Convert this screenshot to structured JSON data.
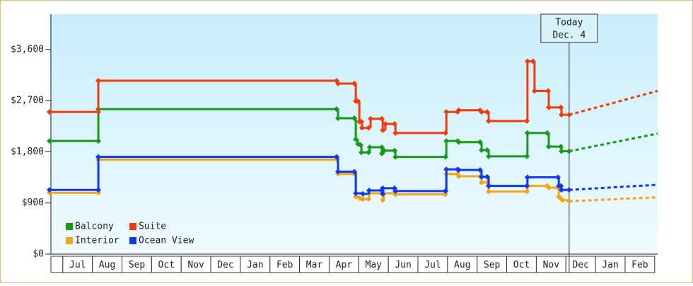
{
  "chart_data": {
    "type": "step-line",
    "xlim": [
      -0.45,
      20.1
    ],
    "ylim": [
      0,
      4220
    ],
    "xticks": [
      {
        "value": 0.5,
        "label": "Jul"
      },
      {
        "value": 1.5,
        "label": "Aug"
      },
      {
        "value": 2.5,
        "label": "Sep"
      },
      {
        "value": 3.5,
        "label": "Oct"
      },
      {
        "value": 4.5,
        "label": "Nov"
      },
      {
        "value": 5.5,
        "label": "Dec"
      },
      {
        "value": 6.5,
        "label": "Jan"
      },
      {
        "value": 7.5,
        "label": "Feb"
      },
      {
        "value": 8.5,
        "label": "Mar"
      },
      {
        "value": 9.5,
        "label": "Apr"
      },
      {
        "value": 10.5,
        "label": "May"
      },
      {
        "value": 11.5,
        "label": "Jun"
      },
      {
        "value": 12.5,
        "label": "Jul"
      },
      {
        "value": 13.5,
        "label": "Aug"
      },
      {
        "value": 14.5,
        "label": "Sep"
      },
      {
        "value": 15.5,
        "label": "Oct"
      },
      {
        "value": 16.5,
        "label": "Nov"
      },
      {
        "value": 17.5,
        "label": "Dec"
      },
      {
        "value": 18.5,
        "label": "Jan"
      },
      {
        "value": 19.5,
        "label": "Feb"
      }
    ],
    "yticks": [
      {
        "value": 0,
        "label": "$0"
      },
      {
        "value": 900,
        "label": "$900"
      },
      {
        "value": 1800,
        "label": "$1,800"
      },
      {
        "value": 2700,
        "label": "$2,700"
      },
      {
        "value": 3600,
        "label": "$3,600"
      }
    ],
    "legend": "lower left",
    "today": {
      "x": 17.11,
      "label": "Today",
      "date": "Dec. 4"
    },
    "series": [
      {
        "name": "Balcony",
        "color": "#189a18",
        "x": [
          -0.45,
          1.2,
          1.2,
          9.25,
          9.3,
          9.85,
          9.9,
          9.97,
          10.06,
          10.09,
          10.33,
          10.37,
          10.78,
          10.78,
          10.85,
          11.21,
          11.24,
          12.93,
          12.96,
          13.34,
          13.38,
          14.1,
          14.15,
          14.34,
          14.39,
          15.68,
          15.7,
          16.37,
          16.42,
          16.83,
          16.85,
          17.11
        ],
        "values": [
          1990,
          1990,
          2550,
          2550,
          2390,
          2390,
          2020,
          1940,
          1920,
          1790,
          1790,
          1880,
          1880,
          1770,
          1820,
          1820,
          1710,
          1710,
          1990,
          1990,
          1970,
          1970,
          1830,
          1830,
          1720,
          1720,
          2130,
          2130,
          1890,
          1890,
          1810,
          1810
        ],
        "forecast_x": [
          17.11,
          20.1
        ],
        "forecast_values": [
          1810,
          2120
        ]
      },
      {
        "name": "Suite",
        "color": "#f03c0c",
        "x": [
          -0.45,
          1.2,
          1.2,
          9.25,
          9.3,
          9.85,
          9.9,
          9.97,
          10.02,
          10.09,
          10.11,
          10.33,
          10.4,
          10.78,
          10.81,
          10.9,
          11.21,
          11.24,
          12.93,
          12.96,
          13.34,
          13.38,
          14.1,
          14.15,
          14.34,
          14.39,
          15.68,
          15.7,
          15.89,
          15.94,
          16.4,
          16.42,
          16.83,
          16.85,
          17.11
        ],
        "values": [
          2500,
          2500,
          3050,
          3050,
          3000,
          3000,
          2690,
          2690,
          2330,
          2330,
          2220,
          2220,
          2380,
          2380,
          2180,
          2290,
          2290,
          2130,
          2130,
          2500,
          2500,
          2530,
          2530,
          2500,
          2500,
          2340,
          2340,
          3390,
          3390,
          2870,
          2870,
          2580,
          2580,
          2450,
          2450
        ],
        "forecast_x": [
          17.11,
          20.1
        ],
        "forecast_values": [
          2450,
          2870
        ]
      },
      {
        "name": "Interior",
        "color": "#f5a418",
        "x": [
          -0.45,
          1.2,
          1.2,
          9.25,
          9.3,
          9.85,
          9.9,
          10.04,
          10.14,
          10.33,
          10.35,
          10.78,
          10.81,
          10.85,
          11.21,
          11.24,
          12.93,
          12.96,
          13.34,
          13.38,
          14.1,
          14.15,
          14.34,
          14.39,
          15.68,
          15.7,
          16.37,
          16.42,
          16.73,
          16.76,
          16.83,
          16.88,
          17.11
        ],
        "values": [
          1080,
          1080,
          1660,
          1660,
          1410,
          1410,
          1010,
          980,
          970,
          970,
          1070,
          1070,
          950,
          1070,
          1070,
          1050,
          1050,
          1410,
          1410,
          1370,
          1370,
          1260,
          1260,
          1100,
          1100,
          1200,
          1200,
          1170,
          1170,
          1010,
          980,
          950,
          930
        ],
        "forecast_x": [
          17.11,
          20.1
        ],
        "forecast_values": [
          930,
          1000
        ]
      },
      {
        "name": "Ocean View",
        "color": "#1038f0",
        "x": [
          -0.45,
          1.2,
          1.2,
          9.25,
          9.3,
          9.85,
          9.9,
          10.14,
          10.35,
          10.78,
          10.81,
          10.81,
          11.21,
          11.24,
          12.93,
          12.96,
          13.34,
          13.38,
          14.1,
          14.15,
          14.34,
          14.39,
          15.68,
          15.7,
          16.73,
          16.76,
          16.83,
          16.85,
          17.11
        ],
        "values": [
          1130,
          1130,
          1710,
          1710,
          1450,
          1450,
          1070,
          1060,
          1120,
          1120,
          1060,
          1160,
          1160,
          1110,
          1110,
          1490,
          1490,
          1480,
          1480,
          1360,
          1360,
          1200,
          1200,
          1350,
          1350,
          1200,
          1200,
          1130,
          1130
        ],
        "forecast_x": [
          17.11,
          20.1
        ],
        "forecast_values": [
          1130,
          1220
        ]
      }
    ]
  }
}
